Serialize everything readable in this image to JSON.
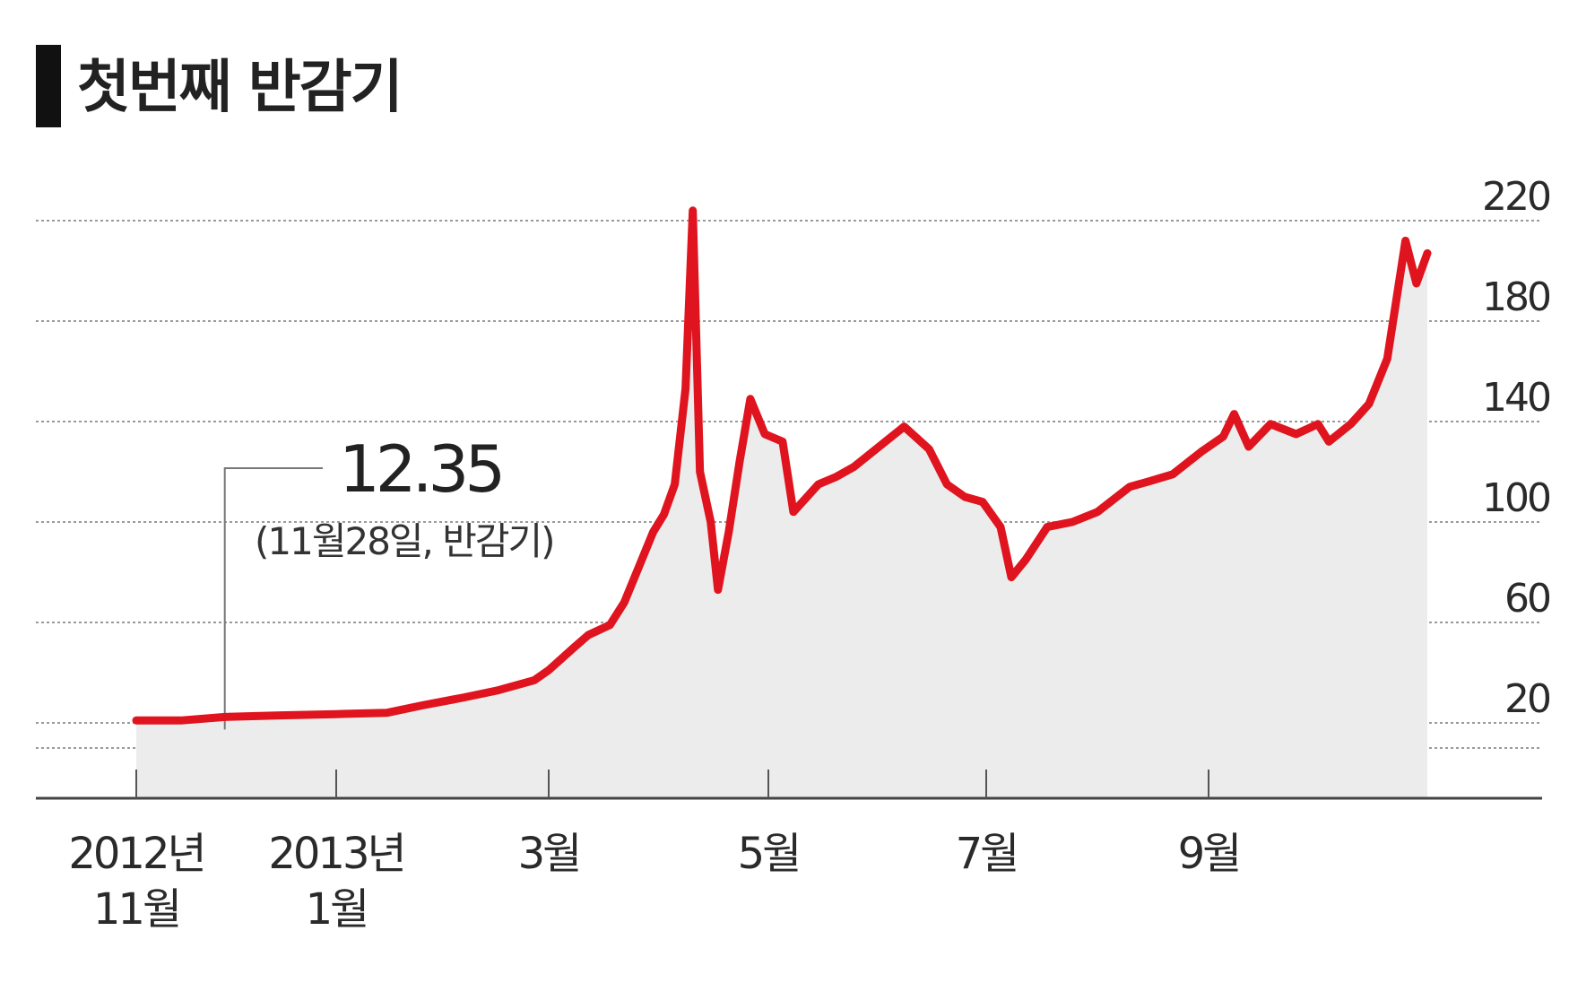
{
  "title": "첫번째 반감기",
  "chart_data": {
    "type": "area",
    "title": "첫번째 반감기",
    "xlabel": "",
    "ylabel": "",
    "x_ticks": [
      {
        "label": [
          "2012년",
          "11월"
        ],
        "x": "2012-11-01"
      },
      {
        "label": [
          "2013년",
          "1월"
        ],
        "x": "2013-01-01"
      },
      {
        "label": [
          "3월"
        ],
        "x": "2013-03-01"
      },
      {
        "label": [
          "5월"
        ],
        "x": "2013-05-01"
      },
      {
        "label": [
          "7월"
        ],
        "x": "2013-07-01"
      },
      {
        "label": [
          "9월"
        ],
        "x": "2013-09-01"
      }
    ],
    "y_ticks": [
      20,
      60,
      100,
      140,
      180,
      220
    ],
    "ylim": [
      -20,
      230
    ],
    "y_axis_position": "right",
    "grid": "horizontal dotted",
    "line_color": "#e0141e",
    "fill_color": "#ececec",
    "annotation": {
      "value": "12.35",
      "note": "(11월28일, 반감기)",
      "x": "2012-11-28"
    },
    "series": [
      {
        "values": [
          [
            "2012-11-01",
            11
          ],
          [
            "2012-11-15",
            11
          ],
          [
            "2012-11-28",
            12.35
          ],
          [
            "2012-12-15",
            13
          ],
          [
            "2013-01-01",
            13.5
          ],
          [
            "2013-01-15",
            14
          ],
          [
            "2013-01-25",
            17
          ],
          [
            "2013-02-05",
            20
          ],
          [
            "2013-02-15",
            23
          ],
          [
            "2013-02-25",
            27
          ],
          [
            "2013-03-01",
            31
          ],
          [
            "2013-03-08",
            40
          ],
          [
            "2013-03-12",
            45
          ],
          [
            "2013-03-18",
            49
          ],
          [
            "2013-03-22",
            58
          ],
          [
            "2013-03-26",
            72
          ],
          [
            "2013-03-30",
            86
          ],
          [
            "2013-04-02",
            93
          ],
          [
            "2013-04-05",
            105
          ],
          [
            "2013-04-08",
            143
          ],
          [
            "2013-04-10",
            214
          ],
          [
            "2013-04-12",
            110
          ],
          [
            "2013-04-15",
            90
          ],
          [
            "2013-04-17",
            63
          ],
          [
            "2013-04-20",
            86
          ],
          [
            "2013-04-23",
            114
          ],
          [
            "2013-04-26",
            139
          ],
          [
            "2013-04-30",
            125
          ],
          [
            "2013-05-05",
            122
          ],
          [
            "2013-05-08",
            94
          ],
          [
            "2013-05-15",
            105
          ],
          [
            "2013-05-20",
            108
          ],
          [
            "2013-05-25",
            112
          ],
          [
            "2013-06-01",
            120
          ],
          [
            "2013-06-08",
            128
          ],
          [
            "2013-06-15",
            119
          ],
          [
            "2013-06-20",
            105
          ],
          [
            "2013-06-25",
            100
          ],
          [
            "2013-06-30",
            98
          ],
          [
            "2013-07-05",
            88
          ],
          [
            "2013-07-08",
            68
          ],
          [
            "2013-07-12",
            75
          ],
          [
            "2013-07-18",
            88
          ],
          [
            "2013-07-25",
            90
          ],
          [
            "2013-08-01",
            94
          ],
          [
            "2013-08-10",
            104
          ],
          [
            "2013-08-15",
            106
          ],
          [
            "2013-08-22",
            109
          ],
          [
            "2013-08-30",
            118
          ],
          [
            "2013-09-05",
            124
          ],
          [
            "2013-09-08",
            133
          ],
          [
            "2013-09-12",
            120
          ],
          [
            "2013-09-18",
            129
          ],
          [
            "2013-09-25",
            125
          ],
          [
            "2013-10-01",
            129
          ],
          [
            "2013-10-04",
            122
          ],
          [
            "2013-10-10",
            129
          ],
          [
            "2013-10-15",
            137
          ],
          [
            "2013-10-20",
            155
          ],
          [
            "2013-10-25",
            202
          ],
          [
            "2013-10-28",
            185
          ],
          [
            "2013-10-31",
            197
          ]
        ]
      }
    ]
  }
}
